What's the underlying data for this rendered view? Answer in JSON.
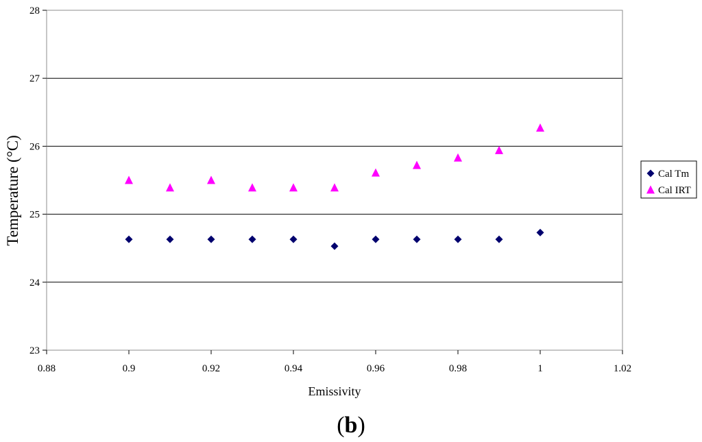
{
  "chart_data": {
    "type": "scatter",
    "title": "",
    "xlabel": "Emissivity",
    "ylabel": "Temperature (°C)",
    "xlim": [
      0.88,
      1.02
    ],
    "ylim": [
      23,
      28
    ],
    "xticks": [
      "0.88",
      "0.9",
      "0.92",
      "0.94",
      "0.96",
      "0.98",
      "1",
      "1.02"
    ],
    "yticks": [
      "23",
      "24",
      "25",
      "26",
      "27",
      "28"
    ],
    "grid": "horizontal",
    "legend_position": "right",
    "series": [
      {
        "name": "Cal Tm",
        "marker": "diamond",
        "color": "#00006e",
        "x": [
          0.9,
          0.91,
          0.92,
          0.93,
          0.94,
          0.95,
          0.96,
          0.97,
          0.98,
          0.99,
          1.0
        ],
        "y": [
          24.63,
          24.63,
          24.63,
          24.63,
          24.63,
          24.53,
          24.63,
          24.63,
          24.63,
          24.63,
          24.73
        ]
      },
      {
        "name": "Cal IRT",
        "marker": "triangle",
        "color": "#ff00ff",
        "x": [
          0.9,
          0.91,
          0.92,
          0.93,
          0.94,
          0.95,
          0.96,
          0.97,
          0.98,
          0.99,
          1.0
        ],
        "y": [
          25.5,
          25.39,
          25.5,
          25.39,
          25.39,
          25.39,
          25.61,
          25.72,
          25.83,
          25.94,
          26.27
        ]
      }
    ]
  },
  "panel": {
    "open": "(",
    "letter": "b",
    "close": ")"
  }
}
